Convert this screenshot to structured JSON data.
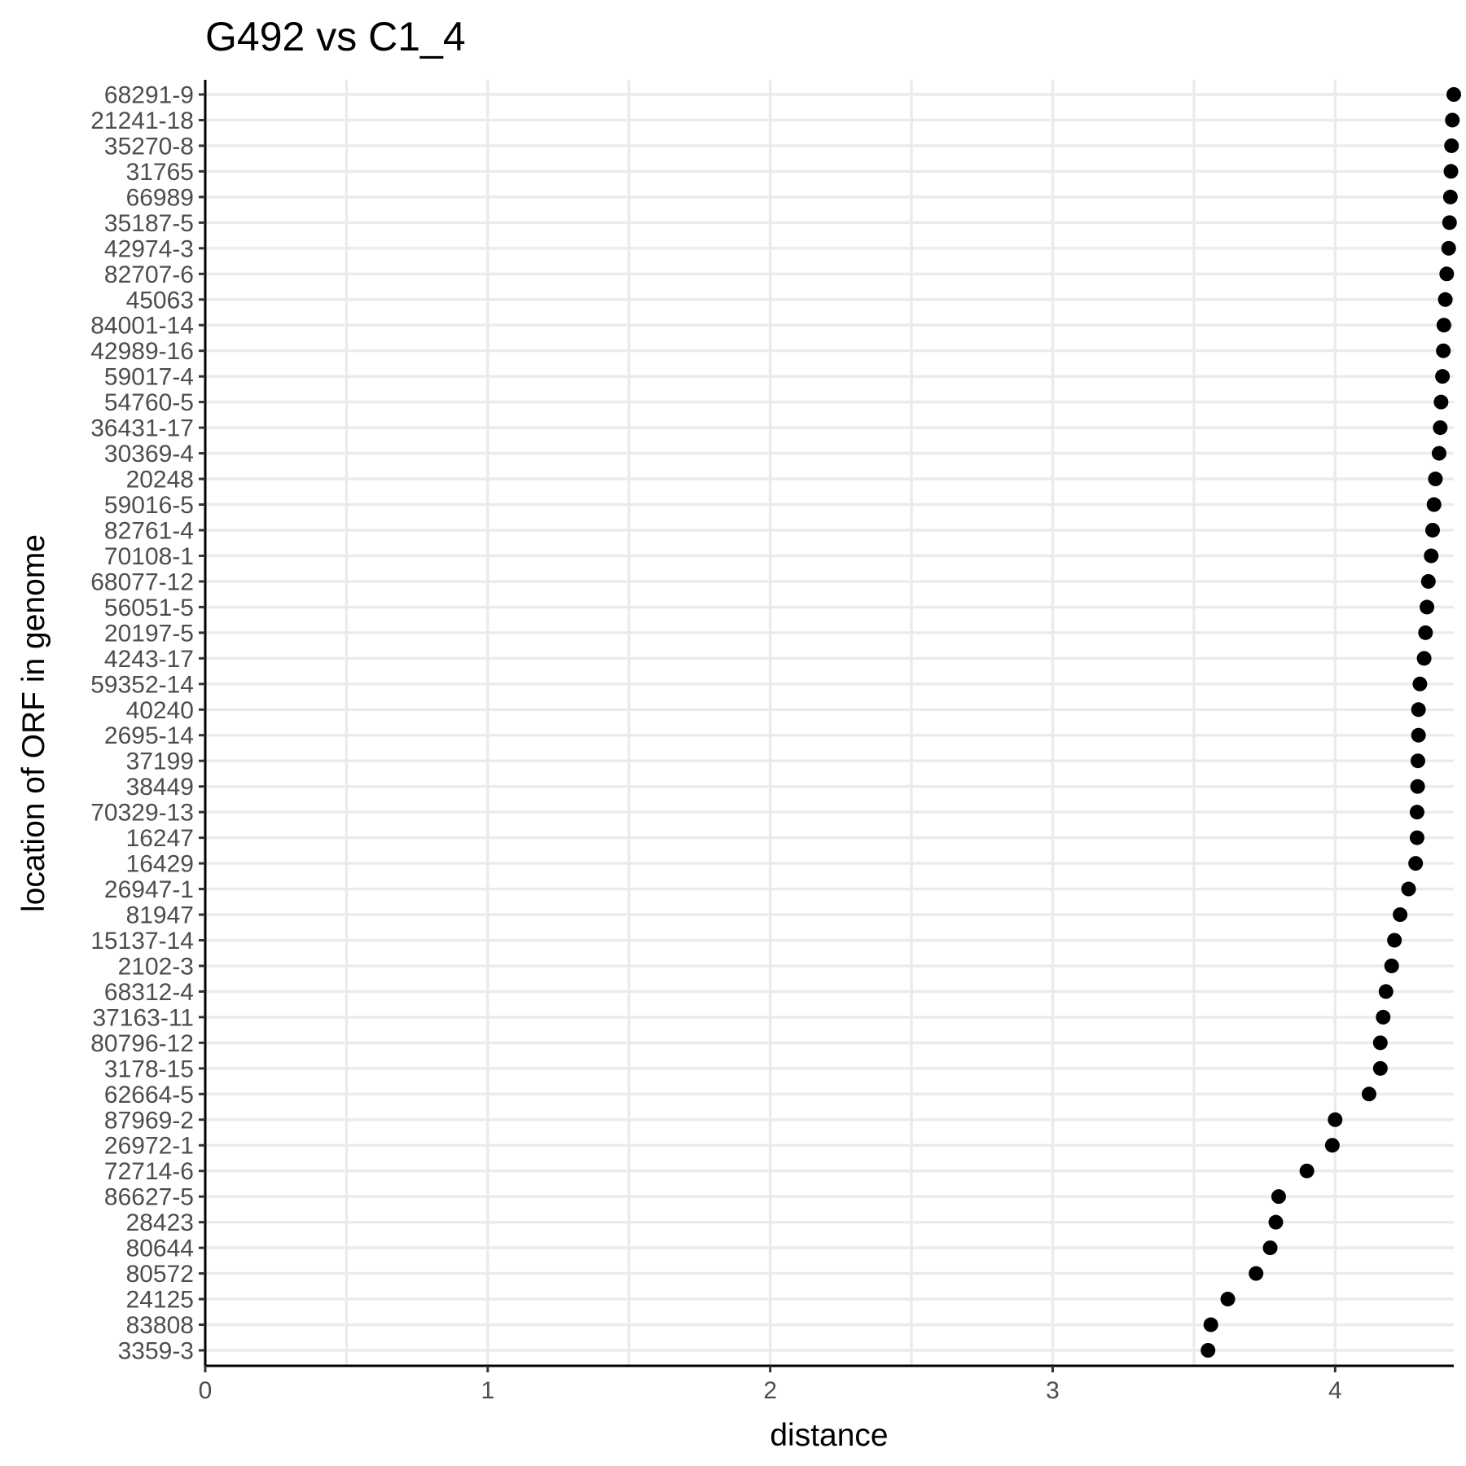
{
  "chart_data": {
    "type": "scatter",
    "title": "G492 vs C1_4",
    "xlabel": "distance",
    "ylabel": "location of ORF in genome",
    "xlim": [
      0,
      4.42
    ],
    "x_ticks": [
      "0",
      "1",
      "2",
      "3",
      "4"
    ],
    "grid": true,
    "categories": [
      "68291-9",
      "21241-18",
      "35270-8",
      "31765",
      "66989",
      "35187-5",
      "42974-3",
      "82707-6",
      "45063",
      "84001-14",
      "42989-16",
      "59017-4",
      "54760-5",
      "36431-17",
      "30369-4",
      "20248",
      "59016-5",
      "82761-4",
      "70108-1",
      "68077-12",
      "56051-5",
      "20197-5",
      "4243-17",
      "59352-14",
      "40240",
      "2695-14",
      "37199",
      "38449",
      "70329-13",
      "16247",
      "16429",
      "26947-1",
      "81947",
      "15137-14",
      "2102-3",
      "68312-4",
      "37163-11",
      "80796-12",
      "3178-15",
      "62664-5",
      "87969-2",
      "26972-1",
      "72714-6",
      "86627-5",
      "28423",
      "80644",
      "80572",
      "24125",
      "83808",
      "3359-3"
    ],
    "values": [
      4.42,
      4.415,
      4.412,
      4.41,
      4.408,
      4.405,
      4.402,
      4.395,
      4.39,
      4.385,
      4.383,
      4.38,
      4.375,
      4.372,
      4.368,
      4.355,
      4.35,
      4.345,
      4.34,
      4.33,
      4.325,
      4.32,
      4.315,
      4.3,
      4.295,
      4.295,
      4.293,
      4.292,
      4.29,
      4.29,
      4.285,
      4.26,
      4.23,
      4.21,
      4.2,
      4.18,
      4.17,
      4.16,
      4.16,
      4.12,
      4.0,
      3.99,
      3.9,
      3.8,
      3.79,
      3.77,
      3.72,
      3.62,
      3.56,
      3.55
    ],
    "point_color": "#000000"
  }
}
